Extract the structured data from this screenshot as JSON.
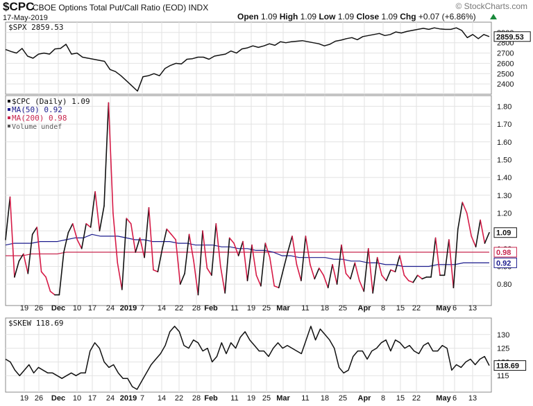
{
  "header": {
    "symbol": "$CPC",
    "description": "CBOE Options Total Put/Call Ratio (EOD)",
    "exchange": "INDX",
    "date": "17-May-2019",
    "open_label": "Open",
    "open": "1.09",
    "high_label": "High",
    "high": "1.09",
    "low_label": "Low",
    "low": "1.09",
    "close_label": "Close",
    "close": "1.09",
    "chg_label": "Chg",
    "chg": "+0.07 (+6.86%)",
    "watermark": "© StockCharts.com",
    "up_color": "#1a8a3c"
  },
  "chart_data": [
    {
      "type": "line",
      "panel": "top",
      "legend": "$SPX 2859.53",
      "series": [
        {
          "name": "$SPX",
          "color": "#111111",
          "values": [
            2735,
            2715,
            2700,
            2745,
            2670,
            2650,
            2690,
            2700,
            2690,
            2740,
            2745,
            2785,
            2690,
            2700,
            2660,
            2650,
            2640,
            2630,
            2620,
            2540,
            2520,
            2480,
            2430,
            2380,
            2330,
            2470,
            2480,
            2500,
            2480,
            2550,
            2580,
            2600,
            2595,
            2640,
            2645,
            2660,
            2660,
            2640,
            2670,
            2680,
            2690,
            2720,
            2700,
            2740,
            2750,
            2770,
            2755,
            2770,
            2790,
            2775,
            2810,
            2800,
            2810,
            2815,
            2820,
            2810,
            2800,
            2790,
            2770,
            2785,
            2815,
            2825,
            2840,
            2850,
            2830,
            2860,
            2870,
            2880,
            2890,
            2870,
            2880,
            2905,
            2895,
            2910,
            2920,
            2930,
            2940,
            2930,
            2945,
            2935,
            2930,
            2930,
            2945,
            2920,
            2850,
            2880,
            2840,
            2880,
            2860
          ]
        }
      ],
      "ylim": [
        2300,
        3000
      ],
      "yticks": [
        "2400",
        "2500",
        "2600",
        "2700",
        "2800",
        "2900"
      ],
      "last_value_label": "2859.53"
    },
    {
      "type": "line",
      "panel": "middle",
      "legends": [
        "$CPC (Daily) 1.09",
        "MA(50) 0.92",
        "MA(200) 0.98",
        "Volume undef"
      ],
      "series": [
        {
          "name": "$CPC",
          "color": "#111111",
          "up_color": "#111111",
          "down_color": "#d61a46",
          "values": [
            1.05,
            1.29,
            0.84,
            0.93,
            0.97,
            0.86,
            1.08,
            1.12,
            0.87,
            0.84,
            0.76,
            0.74,
            0.74,
            0.98,
            1.09,
            1.14,
            1.05,
            1.0,
            1.14,
            1.12,
            1.32,
            1.1,
            1.24,
            1.82,
            1.2,
            0.92,
            0.77,
            1.17,
            1.14,
            0.98,
            1.06,
            0.95,
            1.23,
            0.88,
            0.87,
            1.0,
            1.11,
            1.08,
            1.05,
            0.8,
            0.86,
            1.08,
            0.93,
            0.74,
            1.1,
            0.89,
            0.85,
            1.14,
            0.9,
            0.75,
            1.06,
            1.03,
            0.96,
            1.04,
            0.82,
            1.02,
            0.85,
            0.79,
            1.03,
            0.95,
            0.79,
            0.78,
            0.88,
            0.98,
            1.07,
            0.91,
            0.82,
            1.07,
            0.91,
            0.83,
            0.89,
            0.85,
            0.78,
            0.91,
            0.8,
            1.02,
            0.86,
            0.83,
            0.92,
            0.82,
            0.76,
            1.0,
            0.75,
            0.95,
            0.85,
            0.82,
            0.88,
            0.87,
            0.96,
            0.85,
            0.82,
            0.81,
            0.85,
            0.83,
            0.84,
            0.84,
            1.06,
            0.85,
            0.85,
            1.05,
            0.78,
            1.11,
            1.26,
            1.2,
            1.07,
            1.01,
            1.16,
            1.03,
            1.09
          ]
        },
        {
          "name": "MA(50)",
          "color": "#1a1a8c",
          "values": [
            1.02,
            1.03,
            1.03,
            1.03,
            1.04,
            1.04,
            1.04,
            1.05,
            1.06,
            1.06,
            1.08,
            1.07,
            1.07,
            1.07,
            1.06,
            1.05,
            1.05,
            1.04,
            1.04,
            1.04,
            1.03,
            1.03,
            1.02,
            1.02,
            1.02,
            1.01,
            1.01,
            1.0,
            1.0,
            0.99,
            0.99,
            0.98,
            0.96,
            0.96,
            0.95,
            0.95,
            0.95,
            0.95,
            0.94,
            0.94,
            0.93,
            0.93,
            0.92,
            0.92,
            0.91,
            0.91,
            0.9,
            0.9,
            0.9,
            0.9,
            0.91,
            0.91,
            0.91,
            0.92,
            0.92,
            0.92,
            0.92
          ]
        },
        {
          "name": "MA(200)",
          "color": "#c8264e",
          "values": [
            0.96,
            0.96,
            0.96,
            0.97,
            0.97,
            0.97,
            0.97,
            0.98,
            0.98,
            0.98,
            0.98,
            0.98,
            0.98,
            0.98,
            0.98,
            0.98,
            0.98,
            0.98,
            0.98,
            0.98,
            0.98,
            0.98,
            0.98,
            0.98,
            0.98,
            0.98,
            0.98,
            0.98,
            0.98,
            0.98,
            0.98,
            0.98,
            0.98,
            0.98,
            0.98,
            0.98,
            0.98,
            0.98,
            0.98,
            0.98,
            0.98,
            0.98,
            0.98,
            0.98,
            0.98,
            0.98,
            0.98,
            0.98,
            0.98,
            0.98,
            0.98,
            0.98,
            0.98,
            0.98,
            0.98,
            0.98,
            0.98
          ]
        }
      ],
      "ylim": [
        0.68,
        1.86
      ],
      "yticks": [
        "0.80",
        "0.90",
        "1.00",
        "1.10",
        "1.20",
        "1.30",
        "1.40",
        "1.50",
        "1.60",
        "1.70",
        "1.80"
      ],
      "last_value_labels": {
        "cpc": "1.09",
        "ma200": "0.98",
        "ma50": "0.92"
      }
    },
    {
      "type": "line",
      "panel": "bottom",
      "legend": "$SKEW 118.69",
      "series": [
        {
          "name": "$SKEW",
          "color": "#111111",
          "values": [
            121,
            120,
            117,
            115,
            117,
            119,
            116,
            118,
            117,
            116,
            116,
            115,
            114,
            115,
            116,
            115,
            116,
            116,
            124,
            127,
            125,
            120,
            118,
            119,
            116,
            114,
            114,
            111,
            110,
            113,
            116,
            119,
            121,
            123,
            126,
            131,
            133,
            131,
            126,
            125,
            128,
            127,
            124,
            125,
            120,
            122,
            127,
            123,
            127,
            125,
            129,
            131,
            128,
            126,
            124,
            124,
            122,
            125,
            127,
            125,
            126,
            125,
            124,
            123,
            128,
            133,
            128,
            132,
            130,
            128,
            125,
            118,
            116,
            117,
            122,
            124,
            124,
            121,
            124,
            125,
            127,
            128,
            124,
            128,
            127,
            125,
            126,
            124,
            123,
            126,
            127,
            124,
            124,
            126,
            125,
            117,
            119,
            118,
            120,
            121,
            119,
            121,
            122,
            118.69
          ]
        }
      ],
      "ylim": [
        109,
        136
      ],
      "yticks": [
        "115",
        "120",
        "125",
        "130"
      ],
      "last_value_label": "118.69"
    }
  ],
  "x_axis": {
    "labels": [
      {
        "text": "19",
        "bold": false
      },
      {
        "text": "26",
        "bold": false
      },
      {
        "text": "Dec",
        "bold": true
      },
      {
        "text": "10",
        "bold": false
      },
      {
        "text": "17",
        "bold": false
      },
      {
        "text": "24",
        "bold": false
      },
      {
        "text": "2019",
        "bold": true
      },
      {
        "text": "7",
        "bold": false
      },
      {
        "text": "14",
        "bold": false
      },
      {
        "text": "22",
        "bold": false
      },
      {
        "text": "28",
        "bold": false
      },
      {
        "text": "Feb",
        "bold": true
      },
      {
        "text": "11",
        "bold": false
      },
      {
        "text": "19",
        "bold": false
      },
      {
        "text": "25",
        "bold": false
      },
      {
        "text": "Mar",
        "bold": true
      },
      {
        "text": "11",
        "bold": false
      },
      {
        "text": "18",
        "bold": false
      },
      {
        "text": "25",
        "bold": false
      },
      {
        "text": "Apr",
        "bold": true
      },
      {
        "text": "8",
        "bold": false
      },
      {
        "text": "15",
        "bold": false
      },
      {
        "text": "22",
        "bold": false
      },
      {
        "text": "May",
        "bold": true
      },
      {
        "text": "6",
        "bold": false
      },
      {
        "text": "13",
        "bold": false
      }
    ]
  }
}
